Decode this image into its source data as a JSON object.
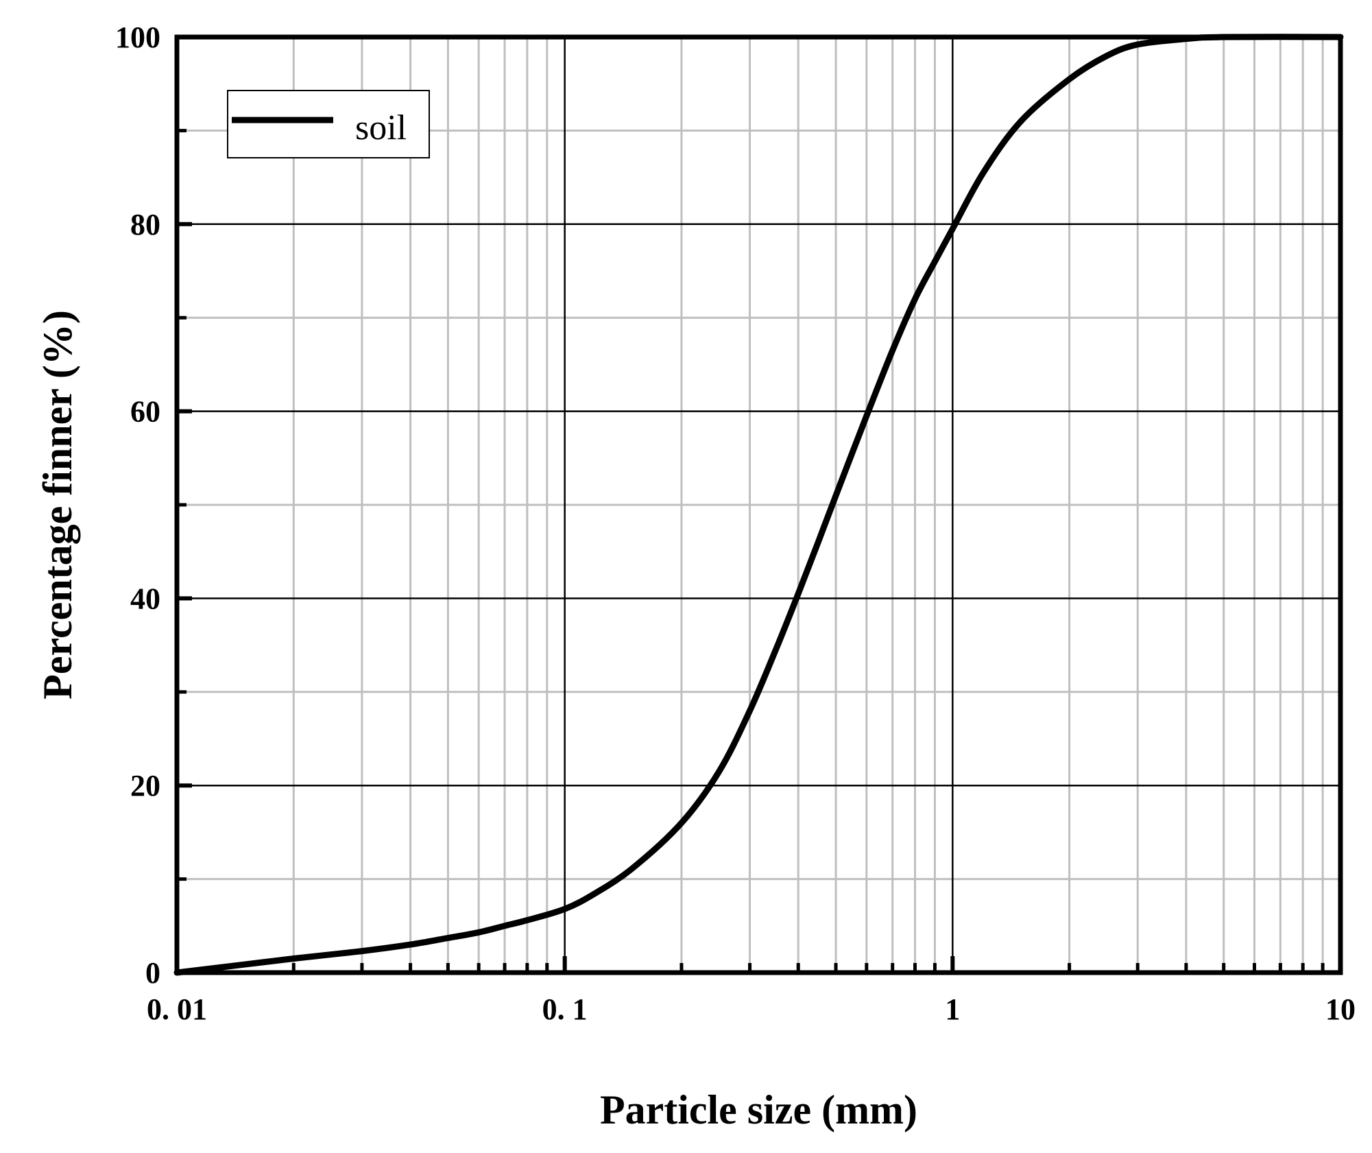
{
  "chart_data": {
    "type": "line",
    "xscale": "log",
    "xlim": [
      0.01,
      10
    ],
    "ylim": [
      0,
      100
    ],
    "xlabel": "Particle size (mm)",
    "ylabel": "Percentage finner (%)",
    "x_ticks": [
      "0. 01",
      "0. 1",
      "1",
      "10"
    ],
    "y_ticks": [
      "0",
      "20",
      "40",
      "60",
      "80",
      "100"
    ],
    "grid": true,
    "legend": {
      "position": "top-left"
    },
    "series": [
      {
        "name": "soil",
        "color": "#000000",
        "x": [
          0.01,
          0.02,
          0.03,
          0.04,
          0.05,
          0.06,
          0.07,
          0.08,
          0.1,
          0.12,
          0.15,
          0.2,
          0.25,
          0.3,
          0.35,
          0.4,
          0.45,
          0.5,
          0.6,
          0.7,
          0.8,
          0.9,
          1.0,
          1.2,
          1.5,
          2.0,
          2.5,
          3.0,
          4.0,
          5.0,
          10.0
        ],
        "y": [
          0,
          1.5,
          2.3,
          3.0,
          3.7,
          4.3,
          5.0,
          5.6,
          6.8,
          8.5,
          11.2,
          16.0,
          21.5,
          28.0,
          34.5,
          40.5,
          46.0,
          51.0,
          59.5,
          66.5,
          72.0,
          76.0,
          79.5,
          85.5,
          91.0,
          95.5,
          98.0,
          99.2,
          99.8,
          100,
          100
        ]
      }
    ]
  }
}
